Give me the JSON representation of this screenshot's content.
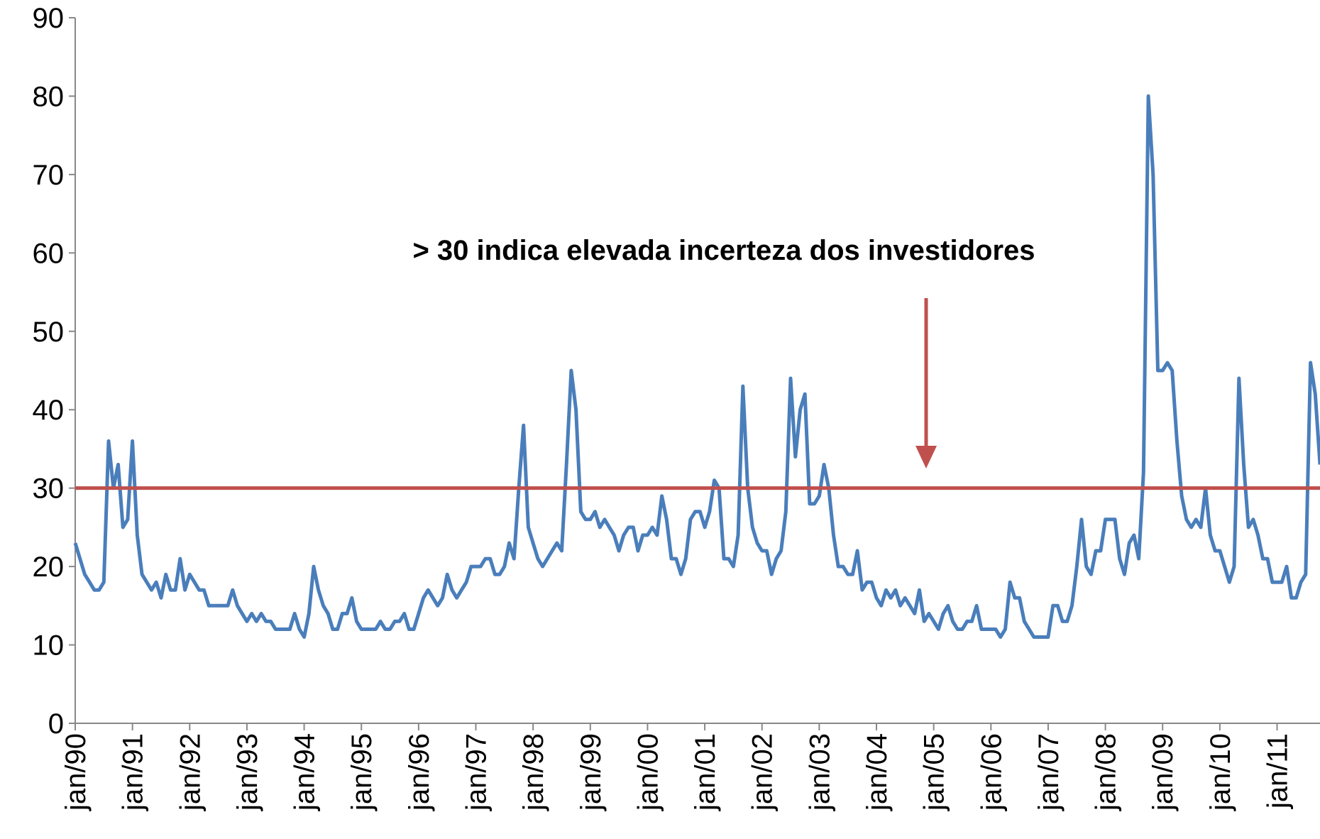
{
  "chart_data": {
    "type": "line",
    "annotation": "> 30 indica elevada incerteza dos investidores",
    "annotation_color": "#c0504d",
    "reference_line": {
      "value": 30,
      "color": "#c0504d"
    },
    "x": [
      "1990-01",
      "1990-02",
      "1990-03",
      "1990-04",
      "1990-05",
      "1990-06",
      "1990-07",
      "1990-08",
      "1990-09",
      "1990-10",
      "1990-11",
      "1990-12",
      "1991-01",
      "1991-02",
      "1991-03",
      "1991-04",
      "1991-05",
      "1991-06",
      "1991-07",
      "1991-08",
      "1991-09",
      "1991-10",
      "1991-11",
      "1991-12",
      "1992-01",
      "1992-02",
      "1992-03",
      "1992-04",
      "1992-05",
      "1992-06",
      "1992-07",
      "1992-08",
      "1992-09",
      "1992-10",
      "1992-11",
      "1992-12",
      "1993-01",
      "1993-02",
      "1993-03",
      "1993-04",
      "1993-05",
      "1993-06",
      "1993-07",
      "1993-08",
      "1993-09",
      "1993-10",
      "1993-11",
      "1993-12",
      "1994-01",
      "1994-02",
      "1994-03",
      "1994-04",
      "1994-05",
      "1994-06",
      "1994-07",
      "1994-08",
      "1994-09",
      "1994-10",
      "1994-11",
      "1994-12",
      "1995-01",
      "1995-02",
      "1995-03",
      "1995-04",
      "1995-05",
      "1995-06",
      "1995-07",
      "1995-08",
      "1995-09",
      "1995-10",
      "1995-11",
      "1995-12",
      "1996-01",
      "1996-02",
      "1996-03",
      "1996-04",
      "1996-05",
      "1996-06",
      "1996-07",
      "1996-08",
      "1996-09",
      "1996-10",
      "1996-11",
      "1996-12",
      "1997-01",
      "1997-02",
      "1997-03",
      "1997-04",
      "1997-05",
      "1997-06",
      "1997-07",
      "1997-08",
      "1997-09",
      "1997-10",
      "1997-11",
      "1997-12",
      "1998-01",
      "1998-02",
      "1998-03",
      "1998-04",
      "1998-05",
      "1998-06",
      "1998-07",
      "1998-08",
      "1998-09",
      "1998-10",
      "1998-11",
      "1998-12",
      "1999-01",
      "1999-02",
      "1999-03",
      "1999-04",
      "1999-05",
      "1999-06",
      "1999-07",
      "1999-08",
      "1999-09",
      "1999-10",
      "1999-11",
      "1999-12",
      "2000-01",
      "2000-02",
      "2000-03",
      "2000-04",
      "2000-05",
      "2000-06",
      "2000-07",
      "2000-08",
      "2000-09",
      "2000-10",
      "2000-11",
      "2000-12",
      "2001-01",
      "2001-02",
      "2001-03",
      "2001-04",
      "2001-05",
      "2001-06",
      "2001-07",
      "2001-08",
      "2001-09",
      "2001-10",
      "2001-11",
      "2001-12",
      "2002-01",
      "2002-02",
      "2002-03",
      "2002-04",
      "2002-05",
      "2002-06",
      "2002-07",
      "2002-08",
      "2002-09",
      "2002-10",
      "2002-11",
      "2002-12",
      "2003-01",
      "2003-02",
      "2003-03",
      "2003-04",
      "2003-05",
      "2003-06",
      "2003-07",
      "2003-08",
      "2003-09",
      "2003-10",
      "2003-11",
      "2003-12",
      "2004-01",
      "2004-02",
      "2004-03",
      "2004-04",
      "2004-05",
      "2004-06",
      "2004-07",
      "2004-08",
      "2004-09",
      "2004-10",
      "2004-11",
      "2004-12",
      "2005-01",
      "2005-02",
      "2005-03",
      "2005-04",
      "2005-05",
      "2005-06",
      "2005-07",
      "2005-08",
      "2005-09",
      "2005-10",
      "2005-11",
      "2005-12",
      "2006-01",
      "2006-02",
      "2006-03",
      "2006-04",
      "2006-05",
      "2006-06",
      "2006-07",
      "2006-08",
      "2006-09",
      "2006-10",
      "2006-11",
      "2006-12",
      "2007-01",
      "2007-02",
      "2007-03",
      "2007-04",
      "2007-05",
      "2007-06",
      "2007-07",
      "2007-08",
      "2007-09",
      "2007-10",
      "2007-11",
      "2007-12",
      "2008-01",
      "2008-02",
      "2008-03",
      "2008-04",
      "2008-05",
      "2008-06",
      "2008-07",
      "2008-08",
      "2008-09",
      "2008-10",
      "2008-11",
      "2008-12",
      "2009-01",
      "2009-02",
      "2009-03",
      "2009-04",
      "2009-05",
      "2009-06",
      "2009-07",
      "2009-08",
      "2009-09",
      "2009-10",
      "2009-11",
      "2009-12",
      "2010-01",
      "2010-02",
      "2010-03",
      "2010-04",
      "2010-05",
      "2010-06",
      "2010-07",
      "2010-08",
      "2010-09",
      "2010-10",
      "2010-11",
      "2010-12",
      "2011-01",
      "2011-02",
      "2011-03",
      "2011-04",
      "2011-05",
      "2011-06",
      "2011-07",
      "2011-08",
      "2011-09",
      "2011-10"
    ],
    "series": [
      {
        "color": "#4a7ebb",
        "values": [
          23,
          21,
          19,
          18,
          17,
          17,
          18,
          36,
          30,
          33,
          25,
          26,
          36,
          24,
          19,
          18,
          17,
          18,
          16,
          19,
          17,
          17,
          21,
          17,
          19,
          18,
          17,
          17,
          15,
          15,
          15,
          15,
          15,
          17,
          15,
          14,
          13,
          14,
          13,
          14,
          13,
          13,
          12,
          12,
          12,
          12,
          14,
          12,
          11,
          14,
          20,
          17,
          15,
          14,
          12,
          12,
          14,
          14,
          16,
          13,
          12,
          12,
          12,
          12,
          13,
          12,
          12,
          13,
          13,
          14,
          12,
          12,
          14,
          16,
          17,
          16,
          15,
          16,
          19,
          17,
          16,
          17,
          18,
          20,
          20,
          20,
          21,
          21,
          19,
          19,
          20,
          23,
          21,
          30,
          38,
          25,
          23,
          21,
          20,
          21,
          22,
          23,
          22,
          33,
          45,
          40,
          27,
          26,
          26,
          27,
          25,
          26,
          25,
          24,
          22,
          24,
          25,
          25,
          22,
          24,
          24,
          25,
          24,
          29,
          26,
          21,
          21,
          19,
          21,
          26,
          27,
          27,
          25,
          27,
          31,
          30,
          21,
          21,
          20,
          24,
          43,
          30,
          25,
          23,
          22,
          22,
          19,
          21,
          22,
          27,
          44,
          34,
          40,
          42,
          28,
          28,
          29,
          33,
          30,
          24,
          20,
          20,
          19,
          19,
          22,
          17,
          18,
          18,
          16,
          15,
          17,
          16,
          17,
          15,
          16,
          15,
          14,
          17,
          13,
          14,
          13,
          12,
          14,
          15,
          13,
          12,
          12,
          13,
          13,
          15,
          12,
          12,
          12,
          12,
          11,
          12,
          18,
          16,
          16,
          13,
          12,
          11,
          11,
          11,
          11,
          15,
          15,
          13,
          13,
          15,
          20,
          26,
          20,
          19,
          22,
          22,
          26,
          26,
          26,
          21,
          19,
          23,
          24,
          21,
          32,
          80,
          70,
          45,
          45,
          46,
          45,
          36,
          29,
          26,
          25,
          26,
          25,
          30,
          24,
          22,
          22,
          20,
          18,
          20,
          44,
          33,
          25,
          26,
          24,
          21,
          21,
          18,
          18,
          18,
          20,
          16,
          16,
          18,
          19,
          46,
          42,
          33
        ]
      }
    ],
    "xlim": [
      "1990-01",
      "2011-10"
    ],
    "xticks": [
      {
        "value": "1990-01",
        "label": "jan/90"
      },
      {
        "value": "1991-01",
        "label": "jan/91"
      },
      {
        "value": "1992-01",
        "label": "jan/92"
      },
      {
        "value": "1993-01",
        "label": "jan/93"
      },
      {
        "value": "1994-01",
        "label": "jan/94"
      },
      {
        "value": "1995-01",
        "label": "jan/95"
      },
      {
        "value": "1996-01",
        "label": "jan/96"
      },
      {
        "value": "1997-01",
        "label": "jan/97"
      },
      {
        "value": "1998-01",
        "label": "jan/98"
      },
      {
        "value": "1999-01",
        "label": "jan/99"
      },
      {
        "value": "2000-01",
        "label": "jan/00"
      },
      {
        "value": "2001-01",
        "label": "jan/01"
      },
      {
        "value": "2002-01",
        "label": "jan/02"
      },
      {
        "value": "2003-01",
        "label": "jan/03"
      },
      {
        "value": "2004-01",
        "label": "jan/04"
      },
      {
        "value": "2005-01",
        "label": "jan/05"
      },
      {
        "value": "2006-01",
        "label": "jan/06"
      },
      {
        "value": "2007-01",
        "label": "jan/07"
      },
      {
        "value": "2008-01",
        "label": "jan/08"
      },
      {
        "value": "2009-01",
        "label": "jan/09"
      },
      {
        "value": "2010-01",
        "label": "jan/10"
      },
      {
        "value": "2011-01",
        "label": "jan/11"
      }
    ],
    "ylim": [
      0,
      90
    ],
    "yticks": [
      0,
      10,
      20,
      30,
      40,
      50,
      60,
      70,
      80,
      90
    ],
    "grid": false
  }
}
